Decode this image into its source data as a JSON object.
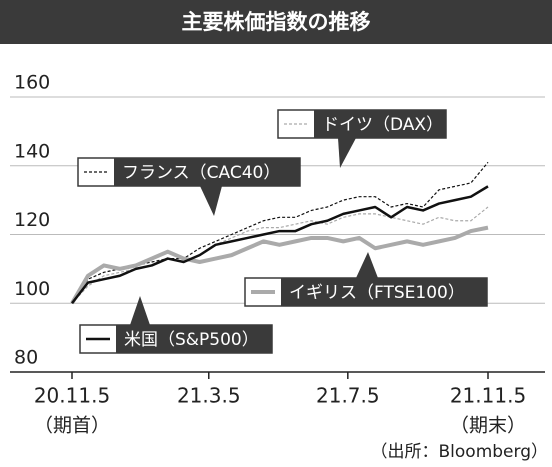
{
  "chart_data": {
    "type": "line",
    "title": "主要株価指数の推移",
    "x": [
      0,
      14,
      28,
      42,
      56,
      70,
      84,
      98,
      112,
      126,
      140,
      154,
      168,
      182,
      196,
      210,
      224,
      238,
      252,
      266,
      280,
      294,
      308,
      322,
      336,
      350,
      365
    ],
    "xlim": [
      0,
      365
    ],
    "xticks": [
      {
        "value": 0,
        "label": "20.11.5"
      },
      {
        "value": 120,
        "label": "21.3.5"
      },
      {
        "value": 242,
        "label": "21.7.5"
      },
      {
        "value": 365,
        "label": "21.11.5"
      }
    ],
    "x_tick_notes": [
      "（期首）",
      "（期末）"
    ],
    "ylim": [
      80,
      160
    ],
    "yticks": [
      160,
      140,
      120,
      100,
      80
    ],
    "grid": true,
    "source": "（出所：Bloomberg）",
    "series": [
      {
        "name": "ドイツ（DAX）",
        "color": "#aaaaaa",
        "dash": true,
        "width": 1.2,
        "values": [
          100,
          105,
          108,
          109,
          110,
          111,
          113,
          112,
          114,
          117,
          119,
          121,
          122,
          122,
          123,
          124,
          123,
          125,
          126,
          126,
          125,
          124,
          123,
          125,
          124,
          124,
          128
        ]
      },
      {
        "name": "フランス（CAC40）",
        "color": "#111111",
        "dash": true,
        "width": 1.2,
        "values": [
          100,
          107,
          109,
          110,
          111,
          112,
          113,
          113,
          116,
          118,
          120,
          122,
          124,
          125,
          125,
          127,
          128,
          130,
          131,
          131,
          128,
          129,
          128,
          133,
          134,
          135,
          141
        ]
      },
      {
        "name": "イギリス（FTSE100）",
        "color": "#aaaaaa",
        "dash": false,
        "width": 4,
        "values": [
          100,
          108,
          111,
          110,
          111,
          113,
          115,
          113,
          112,
          113,
          114,
          116,
          118,
          117,
          118,
          119,
          119,
          118,
          119,
          116,
          117,
          118,
          117,
          118,
          119,
          121,
          122
        ]
      },
      {
        "name": "米国（S&P500）",
        "color": "#111111",
        "dash": false,
        "width": 2.5,
        "values": [
          100,
          106,
          107,
          108,
          110,
          111,
          113,
          112,
          114,
          117,
          118,
          119,
          120,
          121,
          121,
          123,
          124,
          126,
          127,
          128,
          125,
          128,
          127,
          129,
          130,
          131,
          134
        ]
      }
    ]
  }
}
